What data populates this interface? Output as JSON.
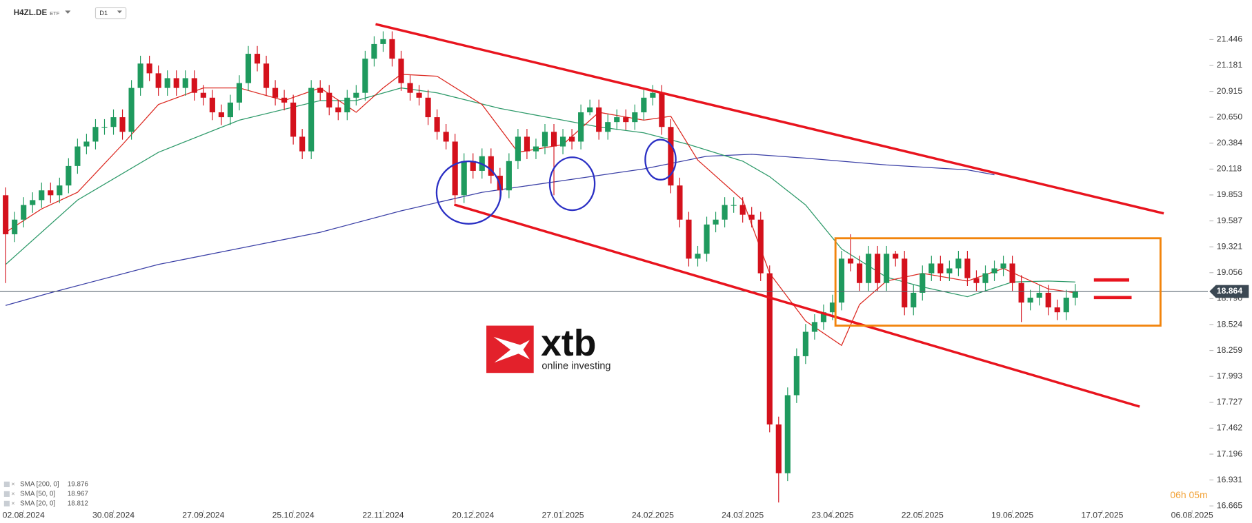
{
  "chart_data": {
    "type": "candlestick",
    "symbol": "H4ZL.DE",
    "asset_class": "ETF",
    "interval": "D1",
    "brand": "xtb",
    "tagline": "online investing",
    "countdown": "06h 05m",
    "up_color": "#1f9a5e",
    "down_color": "#d4111c",
    "open": [
      19.85,
      19.45,
      19.6,
      19.75,
      19.8,
      19.9,
      19.85,
      19.95,
      20.15,
      20.35,
      20.4,
      20.55,
      20.55,
      20.65,
      20.5,
      20.95,
      21.2,
      21.1,
      20.95,
      21.05,
      20.95,
      21.05,
      20.9,
      20.85,
      20.7,
      20.65,
      20.8,
      21.0,
      21.3,
      21.2,
      20.95,
      20.85,
      20.8,
      20.45,
      20.3,
      20.95,
      20.9,
      20.75,
      20.7,
      20.85,
      20.9,
      21.25,
      21.4,
      21.45,
      21.25,
      21.0,
      20.9,
      20.85,
      20.65,
      20.5,
      20.4,
      19.85,
      20.2,
      20.1,
      20.25,
      20.05,
      19.9,
      20.2,
      20.45,
      20.3,
      20.35,
      20.5,
      20.35,
      20.45,
      20.4,
      20.7,
      20.75,
      20.5,
      20.6,
      20.65,
      20.6,
      20.7,
      20.85,
      20.9,
      20.55,
      19.95,
      19.6,
      19.2,
      19.25,
      19.55,
      19.6,
      19.75,
      19.75,
      19.65,
      19.6,
      19.05,
      17.5,
      17.0,
      17.8,
      18.2,
      18.45,
      18.55,
      18.65,
      18.75,
      19.2,
      19.15,
      18.95,
      19.25,
      18.95,
      19.25,
      19.2,
      18.7,
      18.85,
      19.05,
      19.15,
      19.05,
      19.1,
      19.2,
      19.0,
      18.95,
      19.05,
      19.1,
      19.15,
      18.95,
      18.75,
      18.8,
      18.85,
      18.7,
      18.65,
      18.8
    ],
    "high": [
      19.93,
      19.68,
      19.83,
      19.88,
      19.98,
      19.98,
      20.03,
      20.23,
      20.43,
      20.48,
      20.63,
      20.63,
      20.73,
      20.73,
      21.03,
      21.28,
      21.28,
      21.18,
      21.13,
      21.13,
      21.13,
      21.13,
      20.98,
      20.93,
      20.78,
      20.88,
      21.08,
      21.38,
      21.38,
      21.28,
      21.03,
      20.93,
      20.88,
      20.53,
      21.03,
      21.03,
      20.98,
      20.83,
      20.93,
      20.98,
      21.33,
      21.48,
      21.53,
      21.53,
      21.33,
      21.08,
      20.98,
      20.93,
      20.73,
      20.58,
      20.48,
      20.28,
      20.28,
      20.33,
      20.33,
      20.13,
      20.28,
      20.53,
      20.53,
      20.43,
      20.58,
      20.58,
      20.53,
      20.53,
      20.78,
      20.83,
      20.83,
      20.68,
      20.73,
      20.73,
      20.78,
      20.93,
      20.98,
      20.98,
      20.63,
      20.03,
      19.68,
      19.33,
      19.63,
      19.68,
      19.83,
      19.83,
      19.83,
      19.73,
      19.68,
      19.13,
      17.58,
      17.88,
      18.28,
      18.53,
      18.63,
      18.73,
      18.83,
      19.28,
      19.45,
      19.23,
      19.33,
      19.33,
      19.33,
      19.28,
      19.28,
      18.93,
      19.13,
      19.23,
      19.23,
      19.18,
      19.28,
      19.28,
      19.08,
      19.13,
      19.18,
      19.23,
      19.23,
      19.03,
      18.88,
      18.93,
      18.93,
      18.78,
      18.88,
      18.94
    ],
    "low": [
      18.95,
      19.37,
      19.52,
      19.67,
      19.72,
      19.77,
      19.77,
      19.87,
      20.07,
      20.27,
      20.32,
      20.47,
      20.47,
      20.42,
      20.42,
      20.87,
      21.02,
      20.87,
      20.87,
      20.87,
      20.87,
      20.82,
      20.77,
      20.62,
      20.57,
      20.57,
      20.72,
      20.92,
      21.12,
      20.87,
      20.77,
      20.72,
      20.37,
      20.22,
      20.22,
      20.82,
      20.67,
      20.62,
      20.62,
      20.77,
      20.82,
      21.17,
      21.32,
      21.17,
      20.92,
      20.82,
      20.77,
      20.57,
      20.42,
      20.32,
      19.77,
      19.77,
      20.02,
      20.02,
      19.97,
      19.82,
      19.82,
      20.12,
      20.22,
      20.22,
      20.27,
      19.85,
      20.27,
      20.32,
      20.32,
      20.67,
      20.42,
      20.42,
      20.52,
      20.52,
      20.52,
      20.62,
      20.77,
      20.47,
      19.87,
      19.52,
      19.12,
      19.12,
      19.17,
      19.47,
      19.52,
      19.67,
      19.57,
      19.52,
      18.97,
      17.42,
      16.7,
      16.92,
      17.72,
      18.12,
      18.37,
      18.47,
      18.57,
      18.67,
      19.07,
      18.87,
      18.87,
      18.87,
      18.87,
      19.12,
      18.62,
      18.62,
      18.77,
      18.97,
      18.97,
      18.97,
      19.02,
      18.92,
      18.87,
      18.87,
      18.97,
      19.02,
      18.87,
      18.55,
      18.67,
      18.72,
      18.62,
      18.57,
      18.57,
      18.72
    ],
    "close": [
      19.45,
      19.6,
      19.75,
      19.8,
      19.9,
      19.85,
      19.95,
      20.15,
      20.35,
      20.4,
      20.55,
      20.55,
      20.65,
      20.5,
      20.95,
      21.2,
      21.1,
      20.95,
      21.05,
      20.95,
      21.05,
      20.9,
      20.85,
      20.7,
      20.65,
      20.8,
      21.0,
      21.3,
      21.2,
      20.95,
      20.85,
      20.8,
      20.45,
      20.3,
      20.95,
      20.9,
      20.75,
      20.7,
      20.85,
      20.9,
      21.25,
      21.4,
      21.45,
      21.25,
      21.0,
      20.9,
      20.85,
      20.65,
      20.5,
      20.4,
      19.85,
      20.2,
      20.1,
      20.25,
      20.05,
      19.9,
      20.2,
      20.45,
      20.3,
      20.35,
      20.5,
      20.35,
      20.45,
      20.4,
      20.7,
      20.75,
      20.5,
      20.6,
      20.65,
      20.6,
      20.7,
      20.85,
      20.9,
      20.55,
      19.95,
      19.6,
      19.2,
      19.25,
      19.55,
      19.6,
      19.75,
      19.75,
      19.65,
      19.6,
      19.05,
      17.5,
      17.0,
      17.8,
      18.2,
      18.45,
      18.55,
      18.65,
      18.75,
      19.2,
      19.15,
      18.95,
      19.25,
      18.95,
      19.25,
      19.2,
      18.7,
      18.85,
      19.05,
      19.15,
      19.05,
      19.1,
      19.2,
      19.0,
      18.95,
      19.05,
      19.1,
      19.15,
      18.95,
      18.75,
      18.8,
      18.85,
      18.7,
      18.65,
      18.8,
      18.86
    ],
    "indicators": [
      {
        "name": "SMA [200, 0]",
        "last": 19.876,
        "color": "#3a3fa6",
        "x": [
          0,
          5,
          17,
          35,
          44,
          53,
          62,
          71,
          78,
          83,
          89,
          98,
          107,
          110
        ],
        "values": [
          18.72,
          18.85,
          19.14,
          19.47,
          19.69,
          19.88,
          20.0,
          20.12,
          20.25,
          20.27,
          20.23,
          20.16,
          20.11,
          20.06
        ]
      },
      {
        "name": "SMA [50, 0]",
        "last": 18.967,
        "color": "#2e9a6a",
        "x": [
          0,
          8,
          17,
          26,
          35,
          39,
          44,
          48,
          55,
          62,
          66,
          71,
          76,
          82,
          85,
          89,
          93,
          98,
          102,
          107,
          112,
          116,
          119
        ],
        "values": [
          19.14,
          19.8,
          20.29,
          20.62,
          20.82,
          20.82,
          20.95,
          20.9,
          20.74,
          20.62,
          20.55,
          20.49,
          20.37,
          20.2,
          20.04,
          19.75,
          19.3,
          19.01,
          18.91,
          18.81,
          18.96,
          18.97,
          18.96
        ]
      },
      {
        "name": "SMA [20, 0]",
        "last": 18.812,
        "color": "#dc2a22",
        "x": [
          0,
          4,
          8,
          13,
          17,
          22,
          26,
          31,
          35,
          39,
          42,
          44,
          48,
          53,
          57,
          62,
          66,
          71,
          74,
          77,
          82,
          85,
          89,
          93,
          95,
          98,
          102,
          107,
          111,
          116,
          119
        ],
        "values": [
          19.47,
          19.71,
          19.88,
          20.37,
          20.78,
          20.95,
          20.95,
          20.82,
          20.95,
          20.7,
          20.95,
          21.09,
          21.07,
          20.78,
          20.29,
          20.37,
          20.7,
          20.62,
          20.66,
          20.21,
          19.8,
          19.05,
          18.56,
          18.31,
          18.73,
          18.97,
          19.05,
          18.97,
          19.1,
          18.89,
          18.85
        ]
      }
    ],
    "last_price": 18.864,
    "ylim": [
      16.59,
      21.85
    ],
    "yticks": [
      21.446,
      21.181,
      20.915,
      {
        "value": 20.65,
        "label": "20.650"
      },
      20.384,
      20.118,
      19.853,
      19.587,
      19.321,
      19.056,
      {
        "value": 18.79,
        "label": "18.790"
      },
      18.524,
      18.259,
      17.993,
      17.727,
      17.462,
      17.196,
      16.931,
      16.665
    ],
    "xlim": [
      -0.625,
      133.75
    ],
    "xticks": [
      {
        "value": 2,
        "label": "02.08.2024"
      },
      {
        "value": 12,
        "label": "30.08.2024"
      },
      {
        "value": 22,
        "label": "27.09.2024"
      },
      {
        "value": 32,
        "label": "25.10.2024"
      },
      {
        "value": 42,
        "label": "22.11.2024"
      },
      {
        "value": 52,
        "label": "20.12.2024"
      },
      {
        "value": 62,
        "label": "27.01.2025"
      },
      {
        "value": 72,
        "label": "24.02.2025"
      },
      {
        "value": 82,
        "label": "24.03.2025"
      },
      {
        "value": 92,
        "label": "23.04.2025"
      },
      {
        "value": 102,
        "label": "22.05.2025"
      },
      {
        "value": 112,
        "label": "19.06.2025"
      },
      {
        "value": 122,
        "label": "17.07.2025"
      },
      {
        "value": 132,
        "label": "06.08.2025"
      }
    ]
  }
}
